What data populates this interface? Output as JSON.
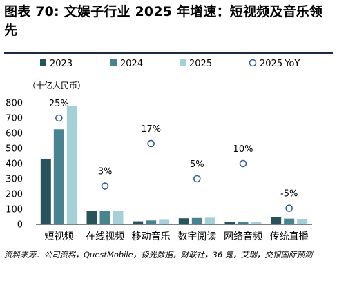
{
  "title": "图表 70: 文娱子行业 2025 年增速：短视频及音乐领先",
  "source": "资料来源：公司资料，QuestMobile，极光数据，财联社，36 氪，艾瑞，交银国际预测",
  "colors": {
    "s2023": "#28535b",
    "s2024": "#4a8390",
    "s2025": "#a6d0d8",
    "yoy": "#2f5f9e",
    "title_rule": "#1f2a44"
  },
  "chart_data": {
    "type": "bar",
    "unit_label": "（十亿人民币）",
    "categories": [
      "短视频",
      "在线视频",
      "移动音乐",
      "数字阅读",
      "网络音频",
      "传统直播"
    ],
    "series": [
      {
        "name": "2023",
        "values": [
          432,
          90,
          20,
          40,
          15,
          48
        ]
      },
      {
        "name": "2024",
        "values": [
          626,
          88,
          26,
          42,
          17,
          38
        ]
      },
      {
        "name": "2025",
        "values": [
          782,
          90,
          30,
          44,
          18,
          36
        ]
      }
    ],
    "yoy": {
      "name": "2025-YoY",
      "values": [
        700,
        252,
        532,
        300,
        400,
        106
      ],
      "labels": [
        "25%",
        "3%",
        "17%",
        "5%",
        "10%",
        "-5%"
      ]
    },
    "yticks": [
      0,
      100,
      200,
      300,
      400,
      500,
      600,
      700,
      800
    ],
    "ylim": [
      0,
      800
    ],
    "legend_position": "top"
  }
}
